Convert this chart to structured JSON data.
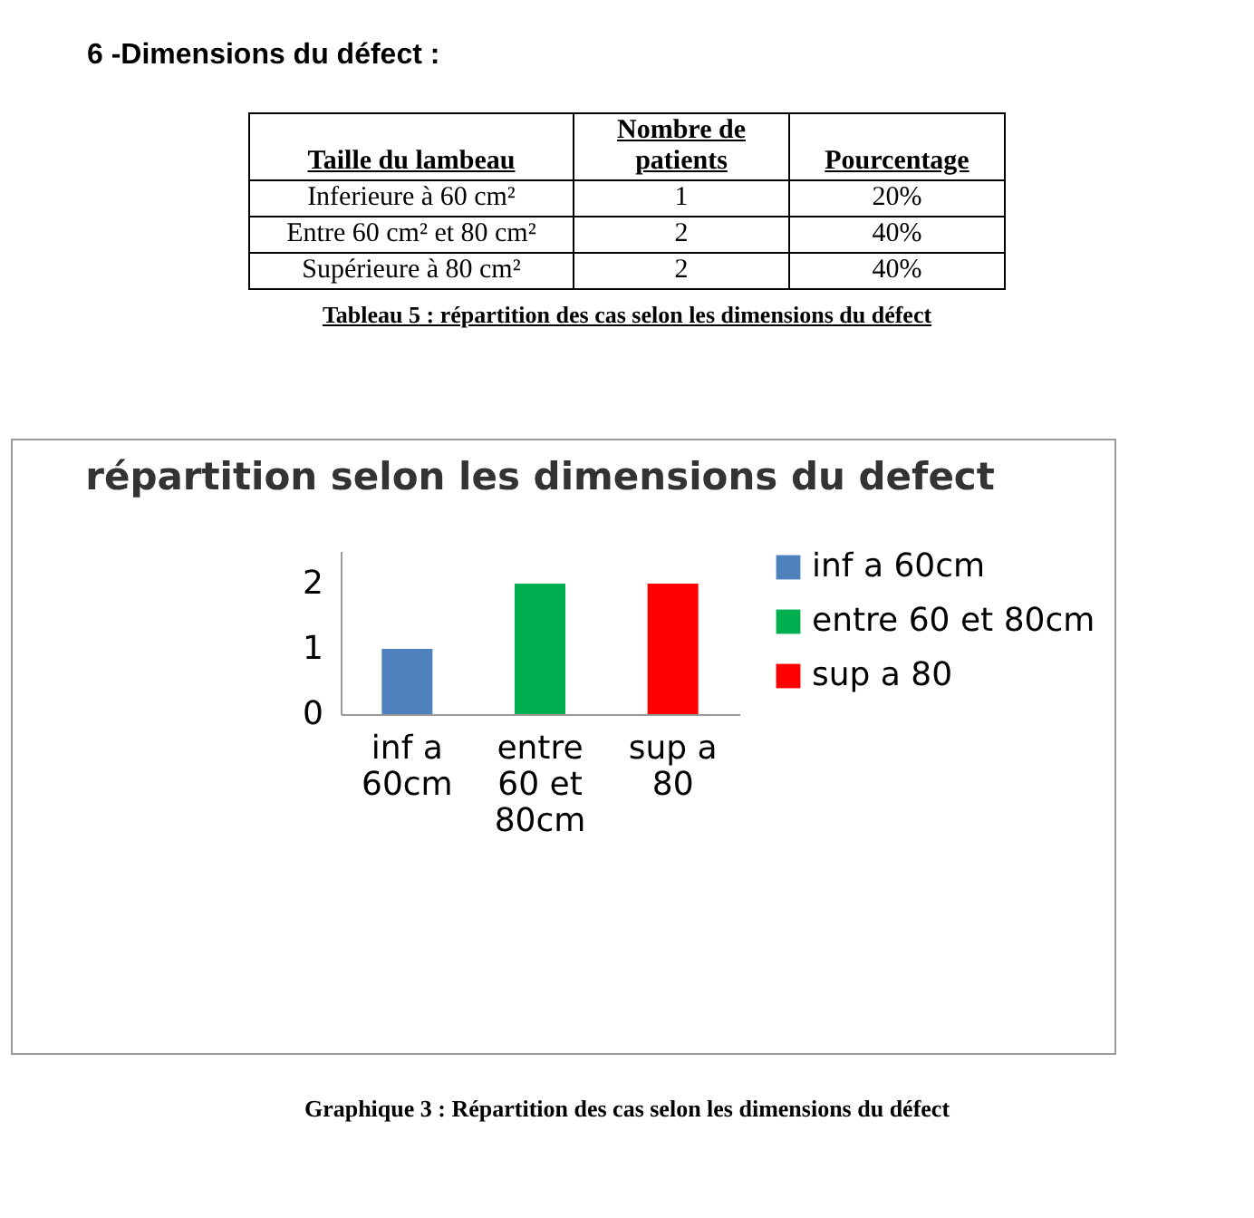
{
  "chart_data": [
    {
      "type": "other",
      "title": "6 -Dimensions du défect :",
      "subtitle": "Tableau 5 : répartition des cas selon les dimensions du défect",
      "categories": [
        "Taille du lambeau",
        "Nombre de patients",
        "Pourcentage"
      ],
      "annotations": [
        "Inferieure à 60 cm²",
        "1",
        "20%",
        "Entre 60 cm² et 80 cm²",
        "2",
        "40%",
        "Supérieure à 80 cm²",
        "2",
        "40%"
      ]
    },
    {
      "type": "bar",
      "title": "répartition selon les dimensions du defect",
      "categories": [
        "inf a 60cm",
        "entre 60 et 80cm",
        "sup a 80"
      ],
      "series": [
        {
          "name": "inf a 60cm",
          "color": "#4f81bd",
          "values": [
            1,
            null,
            null
          ]
        },
        {
          "name": "entre 60 et 80cm",
          "color": "#00b050",
          "values": [
            null,
            2,
            null
          ]
        },
        {
          "name": "sup a 80",
          "color": "#ff0000",
          "values": [
            null,
            null,
            2
          ]
        }
      ],
      "ylim": [
        0,
        2.5
      ],
      "yticks": [
        0,
        1,
        2
      ],
      "grid": false,
      "legend": "right",
      "annotations": [
        "Graphique 3 : Répartition des cas selon les dimensions du défect"
      ]
    }
  ]
}
